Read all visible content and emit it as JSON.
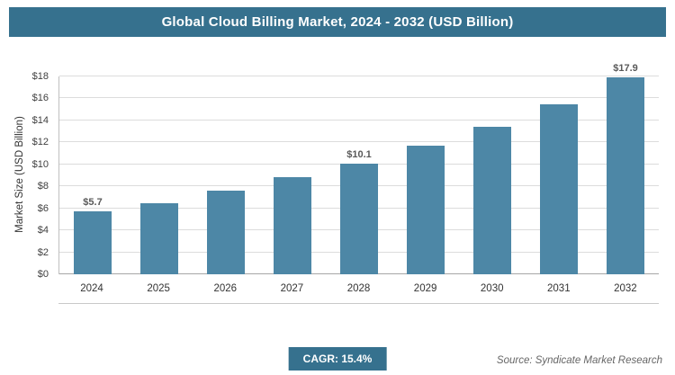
{
  "title": "Global Cloud Billing Market, 2024 - 2032 (USD Billion)",
  "chart_data": {
    "type": "bar",
    "title": "Global Cloud Billing Market, 2024 - 2032 (USD Billion)",
    "categories": [
      "2024",
      "2025",
      "2026",
      "2027",
      "2028",
      "2029",
      "2030",
      "2031",
      "2032"
    ],
    "values": [
      5.7,
      6.5,
      7.6,
      8.8,
      10.1,
      11.7,
      13.4,
      15.5,
      17.9
    ],
    "data_labels": [
      "$5.7",
      "",
      "",
      "",
      "$10.1",
      "",
      "",
      "",
      "$17.9"
    ],
    "xlabel": "",
    "ylabel": "Market Size (USD Billion)",
    "ylim": [
      0,
      18
    ],
    "ytick_step": 2,
    "ytick_prefix": "$",
    "grid": true,
    "legend": "none",
    "bar_color": "#4d87a6"
  },
  "footer": {
    "cagr": "CAGR: 15.4%",
    "source": "Source: Syndicate Market Research"
  },
  "colors": {
    "accent": "#36718e",
    "bar": "#4d87a6",
    "grid": "#dcdcdc",
    "axis": "#bfbfbf",
    "text": "#333333"
  }
}
